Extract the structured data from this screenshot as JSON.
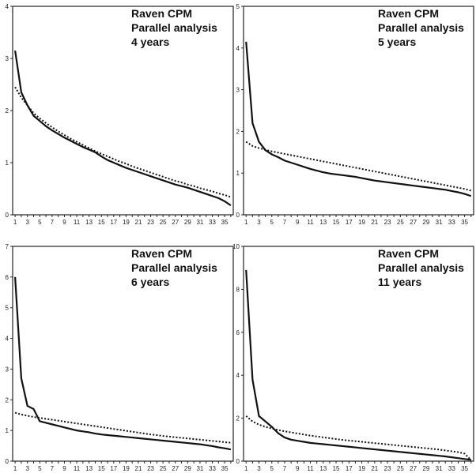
{
  "chart_data": [
    {
      "type": "line",
      "title_lines": [
        "Raven CPM",
        "Parallel analysis",
        "4 years"
      ],
      "x": [
        1,
        2,
        3,
        4,
        5,
        6,
        7,
        8,
        9,
        10,
        11,
        12,
        13,
        14,
        15,
        16,
        17,
        18,
        19,
        20,
        21,
        22,
        23,
        24,
        25,
        26,
        27,
        28,
        29,
        30,
        31,
        32,
        33,
        34,
        35,
        36
      ],
      "xticks": [
        1,
        3,
        5,
        7,
        9,
        11,
        13,
        15,
        17,
        19,
        21,
        23,
        25,
        27,
        29,
        31,
        33,
        35
      ],
      "ylim": [
        0,
        4
      ],
      "yticks": [
        0,
        1,
        2,
        3,
        4
      ],
      "series": [
        {
          "style": "solid",
          "values": [
            3.15,
            2.35,
            2.1,
            1.9,
            1.8,
            1.7,
            1.62,
            1.55,
            1.48,
            1.42,
            1.36,
            1.3,
            1.25,
            1.2,
            1.12,
            1.05,
            1.0,
            0.95,
            0.9,
            0.86,
            0.82,
            0.78,
            0.74,
            0.7,
            0.66,
            0.62,
            0.58,
            0.55,
            0.52,
            0.48,
            0.44,
            0.4,
            0.36,
            0.32,
            0.26,
            0.18
          ]
        },
        {
          "style": "dotted",
          "values": [
            2.45,
            2.25,
            2.1,
            1.95,
            1.85,
            1.76,
            1.68,
            1.6,
            1.53,
            1.46,
            1.4,
            1.34,
            1.28,
            1.22,
            1.17,
            1.12,
            1.07,
            1.02,
            0.98,
            0.93,
            0.89,
            0.85,
            0.81,
            0.77,
            0.73,
            0.69,
            0.65,
            0.62,
            0.58,
            0.55,
            0.51,
            0.48,
            0.45,
            0.41,
            0.38,
            0.34
          ]
        }
      ]
    },
    {
      "type": "line",
      "title_lines": [
        "Raven CPM",
        "Parallel analysis",
        "5 years"
      ],
      "x": [
        1,
        2,
        3,
        4,
        5,
        6,
        7,
        8,
        9,
        10,
        11,
        12,
        13,
        14,
        15,
        16,
        17,
        18,
        19,
        20,
        21,
        22,
        23,
        24,
        25,
        26,
        27,
        28,
        29,
        30,
        31,
        32,
        33,
        34,
        35,
        36
      ],
      "xticks": [
        1,
        3,
        5,
        7,
        9,
        11,
        13,
        15,
        17,
        19,
        21,
        23,
        25,
        27,
        29,
        31,
        33,
        35
      ],
      "ylim": [
        0,
        5
      ],
      "yticks": [
        0,
        1,
        2,
        3,
        4,
        5
      ],
      "series": [
        {
          "style": "solid",
          "values": [
            4.15,
            2.2,
            1.75,
            1.55,
            1.45,
            1.38,
            1.3,
            1.25,
            1.2,
            1.15,
            1.1,
            1.06,
            1.02,
            0.99,
            0.97,
            0.95,
            0.93,
            0.91,
            0.88,
            0.85,
            0.82,
            0.8,
            0.78,
            0.76,
            0.74,
            0.72,
            0.7,
            0.68,
            0.66,
            0.64,
            0.62,
            0.6,
            0.57,
            0.54,
            0.5,
            0.45
          ]
        },
        {
          "style": "dotted",
          "values": [
            1.75,
            1.65,
            1.6,
            1.56,
            1.52,
            1.49,
            1.46,
            1.43,
            1.4,
            1.37,
            1.34,
            1.31,
            1.28,
            1.25,
            1.22,
            1.19,
            1.16,
            1.13,
            1.1,
            1.07,
            1.04,
            1.01,
            0.98,
            0.95,
            0.92,
            0.89,
            0.86,
            0.83,
            0.8,
            0.77,
            0.74,
            0.71,
            0.68,
            0.65,
            0.62,
            0.58
          ]
        }
      ]
    },
    {
      "type": "line",
      "title_lines": [
        "Raven CPM",
        "Parallel analysis",
        "6 years"
      ],
      "x": [
        1,
        2,
        3,
        4,
        5,
        6,
        7,
        8,
        9,
        10,
        11,
        12,
        13,
        14,
        15,
        16,
        17,
        18,
        19,
        20,
        21,
        22,
        23,
        24,
        25,
        26,
        27,
        28,
        29,
        30,
        31,
        32,
        33,
        34,
        35,
        36
      ],
      "xticks": [
        1,
        3,
        5,
        7,
        9,
        11,
        13,
        15,
        17,
        19,
        21,
        23,
        25,
        27,
        29,
        31,
        33,
        35
      ],
      "ylim": [
        0,
        7
      ],
      "yticks": [
        0,
        1,
        2,
        3,
        4,
        5,
        6,
        7
      ],
      "series": [
        {
          "style": "solid",
          "values": [
            6.0,
            2.7,
            1.8,
            1.7,
            1.3,
            1.25,
            1.2,
            1.15,
            1.1,
            1.05,
            1.0,
            0.97,
            0.94,
            0.9,
            0.87,
            0.85,
            0.83,
            0.81,
            0.79,
            0.77,
            0.75,
            0.73,
            0.71,
            0.69,
            0.67,
            0.65,
            0.63,
            0.61,
            0.59,
            0.57,
            0.55,
            0.52,
            0.49,
            0.45,
            0.42,
            0.38
          ]
        },
        {
          "style": "dotted",
          "values": [
            1.58,
            1.52,
            1.48,
            1.44,
            1.41,
            1.38,
            1.35,
            1.32,
            1.29,
            1.26,
            1.23,
            1.2,
            1.17,
            1.14,
            1.11,
            1.08,
            1.05,
            1.02,
            0.99,
            0.96,
            0.93,
            0.9,
            0.87,
            0.85,
            0.82,
            0.8,
            0.78,
            0.76,
            0.74,
            0.72,
            0.7,
            0.68,
            0.66,
            0.64,
            0.62,
            0.6
          ]
        }
      ]
    },
    {
      "type": "line",
      "title_lines": [
        "Raven CPM",
        "Parallel analysis",
        "11 years"
      ],
      "x": [
        1,
        2,
        3,
        4,
        5,
        6,
        7,
        8,
        9,
        10,
        11,
        12,
        13,
        14,
        15,
        16,
        17,
        18,
        19,
        20,
        21,
        22,
        23,
        24,
        25,
        26,
        27,
        28,
        29,
        30,
        31,
        32,
        33,
        34,
        35,
        36
      ],
      "xticks": [
        1,
        3,
        5,
        7,
        9,
        11,
        13,
        15,
        17,
        19,
        21,
        23,
        25,
        27,
        29,
        31,
        33,
        35
      ],
      "ylim": [
        0,
        10
      ],
      "yticks": [
        0,
        2,
        4,
        6,
        8,
        10
      ],
      "series": [
        {
          "style": "solid",
          "values": [
            8.9,
            3.8,
            2.1,
            1.85,
            1.6,
            1.3,
            1.1,
            1.0,
            0.95,
            0.9,
            0.85,
            0.82,
            0.79,
            0.76,
            0.73,
            0.7,
            0.67,
            0.64,
            0.61,
            0.58,
            0.55,
            0.52,
            0.49,
            0.46,
            0.43,
            0.4,
            0.37,
            0.34,
            0.31,
            0.28,
            0.25,
            0.22,
            0.18,
            0.14,
            0.1,
            0.06
          ]
        },
        {
          "style": "dotted",
          "values": [
            2.1,
            1.85,
            1.7,
            1.6,
            1.52,
            1.45,
            1.39,
            1.34,
            1.29,
            1.24,
            1.19,
            1.15,
            1.11,
            1.07,
            1.03,
            0.99,
            0.96,
            0.93,
            0.9,
            0.87,
            0.84,
            0.81,
            0.78,
            0.75,
            0.72,
            0.69,
            0.66,
            0.63,
            0.6,
            0.57,
            0.54,
            0.5,
            0.46,
            0.42,
            0.35,
            0.05
          ]
        }
      ]
    }
  ]
}
